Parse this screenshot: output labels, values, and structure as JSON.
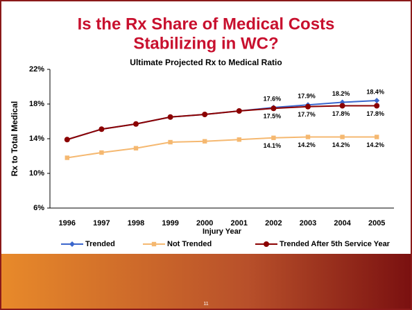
{
  "chart_data": {
    "type": "line",
    "title": [
      "Is the Rx Share of Medical Costs",
      "Stabilizing in WC?"
    ],
    "subtitle": "Ultimate Projected Rx to Medical Ratio",
    "x_label": "Injury Year",
    "y_label": "Rx to Total Medical",
    "categories": [
      "1996",
      "1997",
      "1998",
      "1999",
      "2000",
      "2001",
      "2002",
      "2003",
      "2004",
      "2005"
    ],
    "ylim": [
      6,
      22
    ],
    "yticks": [
      {
        "value": 6,
        "label": "6%"
      },
      {
        "value": 10,
        "label": "10%"
      },
      {
        "value": 14,
        "label": "14%"
      },
      {
        "value": 18,
        "label": "18%"
      },
      {
        "value": 22,
        "label": "22%"
      }
    ],
    "legend": "bottom",
    "series": [
      {
        "name": "Trended",
        "color": "#3a66cc",
        "marker": "diamond",
        "values": [
          13.9,
          15.1,
          15.7,
          16.5,
          16.8,
          17.2,
          17.6,
          17.9,
          18.2,
          18.4
        ],
        "value_labels": [
          null,
          null,
          null,
          null,
          null,
          null,
          "17.6%",
          "17.9%",
          "18.2%",
          "18.4%"
        ]
      },
      {
        "name": "Not Trended",
        "color": "#f5b870",
        "marker": "square",
        "values": [
          11.8,
          12.4,
          12.9,
          13.6,
          13.7,
          13.9,
          14.1,
          14.2,
          14.2,
          14.2
        ],
        "value_labels": [
          null,
          null,
          null,
          null,
          null,
          null,
          "14.1%",
          "14.2%",
          "14.2%",
          "14.2%"
        ]
      },
      {
        "name": "Trended After 5th Service Year",
        "color": "#8b0000",
        "marker": "circle",
        "values": [
          13.9,
          15.1,
          15.7,
          16.5,
          16.8,
          17.2,
          17.5,
          17.7,
          17.8,
          17.8
        ],
        "value_labels": [
          null,
          null,
          null,
          null,
          null,
          null,
          "17.5%",
          "17.7%",
          "17.8%",
          "17.8%"
        ]
      }
    ]
  },
  "slide": {
    "page_number": "11"
  }
}
